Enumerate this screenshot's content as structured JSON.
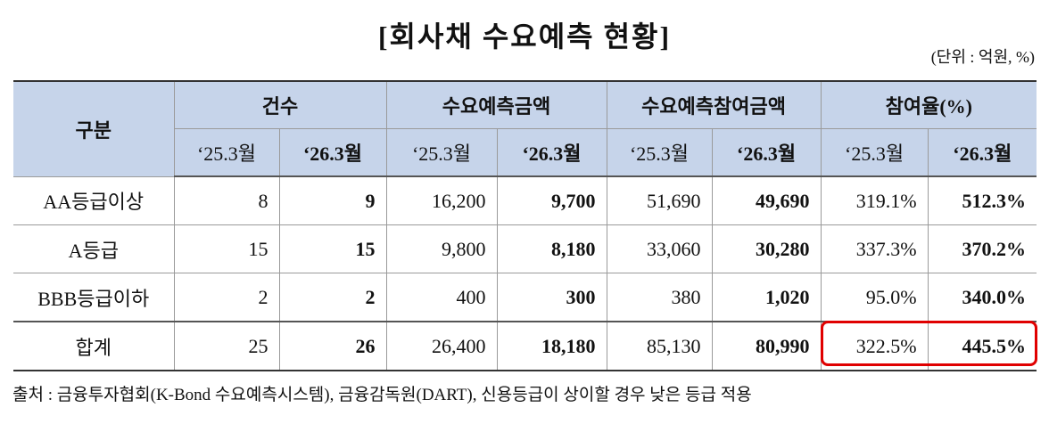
{
  "title": "[회사채 수요예측 현황]",
  "unit": "(단위 : 억원, %)",
  "table": {
    "row_header": "구분",
    "groups": [
      "건수",
      "수요예측금액",
      "수요예측참여금액",
      "참여율(%)"
    ],
    "periods": [
      "‘25.3월",
      "‘26.3월",
      "‘25.3월",
      "‘26.3월",
      "‘25.3월",
      "‘26.3월",
      "‘25.3월",
      "‘26.3월"
    ],
    "rows": [
      [
        "AA등급이상",
        "8",
        "9",
        "16,200",
        "9,700",
        "51,690",
        "49,690",
        "319.1%",
        "512.3%"
      ],
      [
        "A등급",
        "15",
        "15",
        "9,800",
        "8,180",
        "33,060",
        "30,280",
        "337.3%",
        "370.2%"
      ],
      [
        "BBB등급이하",
        "2",
        "2",
        "400",
        "300",
        "380",
        "1,020",
        "95.0%",
        "340.0%"
      ],
      [
        "합계",
        "25",
        "26",
        "26,400",
        "18,180",
        "85,130",
        "80,990",
        "322.5%",
        "445.5%"
      ]
    ]
  },
  "source": "출처 : 금융투자협회(K-Bond 수요예측시스템), 금융감독원(DART), 신용등급이 상이할 경우 낮은 등급 적용"
}
